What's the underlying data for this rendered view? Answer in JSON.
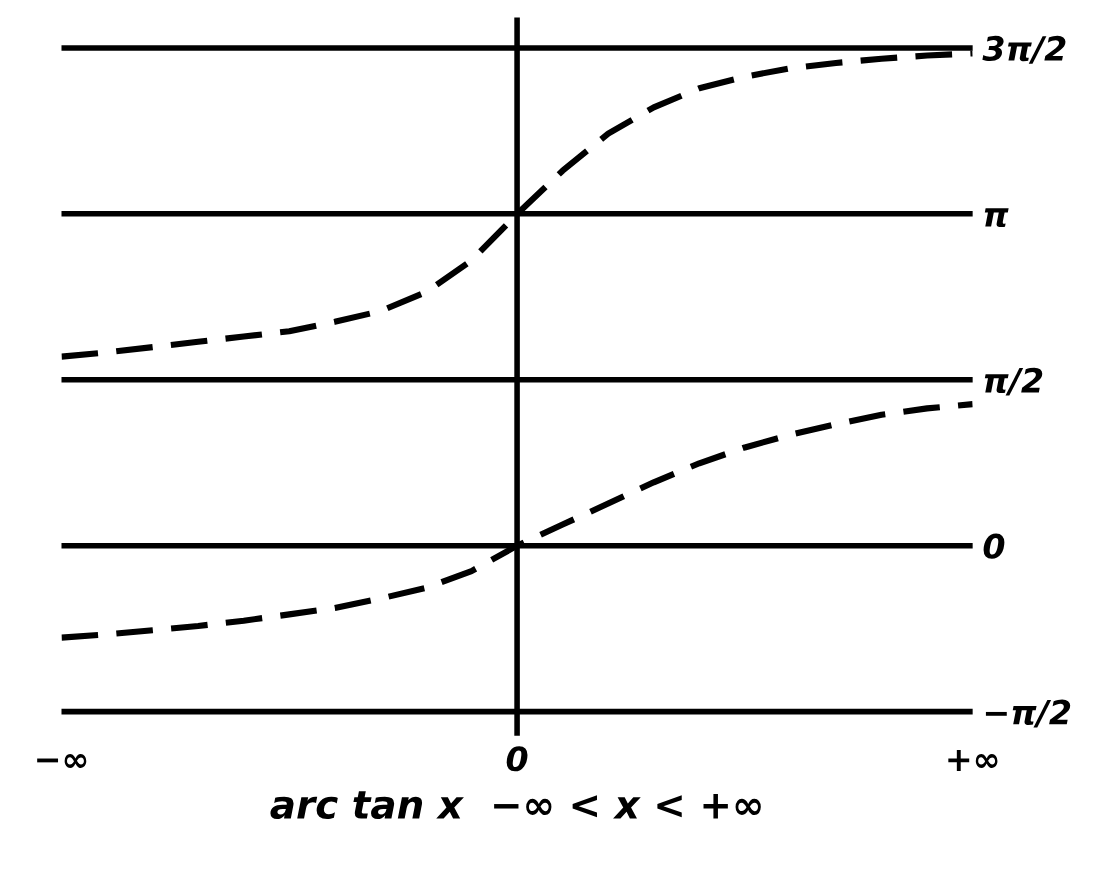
{
  "chart_data": {
    "type": "line",
    "xlabel": "arc tan x  −∞ < x < +∞",
    "categories": [
      "−∞",
      null,
      null,
      null,
      null,
      null,
      null,
      null,
      null,
      null,
      "0",
      null,
      null,
      null,
      null,
      null,
      null,
      null,
      null,
      null,
      "+∞"
    ],
    "series": [
      {
        "color": "#000000",
        "values": [
          -0.87,
          -0.84,
          -0.8,
          -0.76,
          -0.71,
          -0.65,
          -0.59,
          -0.5,
          -0.4,
          -0.24,
          0,
          0.2,
          0.4,
          0.6,
          0.78,
          0.93,
          1.05,
          1.15,
          1.24,
          1.3,
          1.34
        ]
      },
      {
        "color": "#000000",
        "values": [
          1.79,
          1.83,
          1.88,
          1.93,
          1.98,
          2.03,
          2.12,
          2.22,
          2.4,
          2.7,
          3.14,
          3.55,
          3.9,
          4.15,
          4.33,
          4.44,
          4.52,
          4.57,
          4.61,
          4.64,
          4.66
        ]
      }
    ],
    "line_style": "dashed",
    "marker": "none",
    "grid": false,
    "legend": false,
    "ylim": [
      -1.8,
      5.0
    ],
    "yticks": [
      {
        "value": -1.571,
        "label": "−π/2"
      },
      {
        "value": 0,
        "label": "0"
      },
      {
        "value": 1.571,
        "label": "π/2"
      },
      {
        "value": 3.142,
        "label": "π"
      },
      {
        "value": 4.712,
        "label": "3π/2"
      }
    ],
    "ref_lines": [
      {
        "axis": "y",
        "value": -1.571,
        "color": "#000000"
      },
      {
        "axis": "y",
        "value": 0,
        "color": "#000000"
      },
      {
        "axis": "y",
        "value": 1.571,
        "color": "#000000"
      },
      {
        "axis": "y",
        "value": 3.142,
        "color": "#000000"
      },
      {
        "axis": "y",
        "value": 4.712,
        "color": "#000000"
      },
      {
        "axis": "x",
        "value": "0",
        "color": "#000000"
      }
    ]
  }
}
